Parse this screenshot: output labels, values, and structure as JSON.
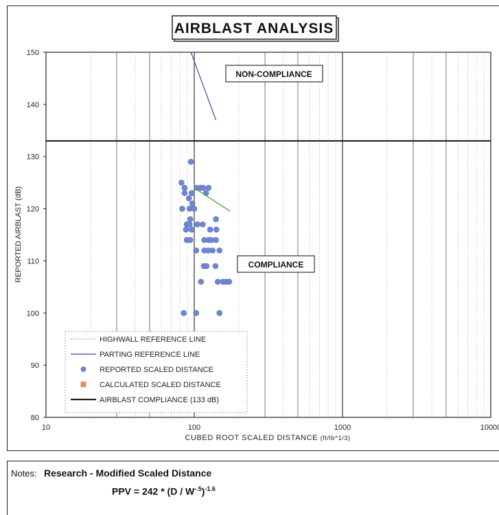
{
  "chart_data": {
    "type": "scatter",
    "title": "AIRBLAST ANALYSIS",
    "xlabel": "CUBED ROOT SCALED DISTANCE",
    "xlabel_unit": "(ft/lb^1/3)",
    "ylabel": "REPORTED AIRBLAST (dB)",
    "x_scale": "log",
    "xlim": [
      10,
      10000
    ],
    "ylim": [
      80,
      150
    ],
    "x_ticks": [
      10,
      100,
      1000,
      10000
    ],
    "x_tick_labels": [
      "10",
      "100",
      "1000",
      "10000"
    ],
    "y_ticks": [
      80,
      90,
      100,
      110,
      120,
      130,
      140,
      150
    ],
    "y_tick_labels": [
      "80",
      "90",
      "100",
      "110",
      "120",
      "130",
      "140",
      "150"
    ],
    "grid": "vertical log grid",
    "legend_position": "bottom-left",
    "annotations": [
      "NON-COMPLIANCE",
      "COMPLIANCE"
    ],
    "series": [
      {
        "name": "HIGHWALL REFERENCE LINE",
        "style": "dotted",
        "color": "#9a9a9a",
        "points": []
      },
      {
        "name": "PARTING REFERENCE LINE",
        "style": "line",
        "color": "#3b4aa8",
        "points": [
          [
            95,
            150
          ],
          [
            140,
            137
          ]
        ]
      },
      {
        "name": "REPORTED SCALED DISTANCE",
        "style": "marker-circle",
        "color": "#6f86d4",
        "points": [
          [
            95,
            129
          ],
          [
            82,
            125
          ],
          [
            86,
            124
          ],
          [
            104,
            124
          ],
          [
            110,
            124
          ],
          [
            115,
            124
          ],
          [
            125,
            124
          ],
          [
            86,
            123
          ],
          [
            96,
            123
          ],
          [
            120,
            123
          ],
          [
            92,
            122
          ],
          [
            97,
            121
          ],
          [
            83,
            120
          ],
          [
            93,
            120
          ],
          [
            100,
            120
          ],
          [
            94,
            118
          ],
          [
            140,
            118
          ],
          [
            89,
            117
          ],
          [
            93,
            117
          ],
          [
            105,
            117
          ],
          [
            114,
            117
          ],
          [
            88,
            116
          ],
          [
            96,
            116
          ],
          [
            128,
            116
          ],
          [
            141,
            116
          ],
          [
            89,
            114
          ],
          [
            94,
            114
          ],
          [
            117,
            114
          ],
          [
            125,
            114
          ],
          [
            130,
            114
          ],
          [
            140,
            114
          ],
          [
            103,
            112
          ],
          [
            117,
            112
          ],
          [
            124,
            112
          ],
          [
            133,
            112
          ],
          [
            148,
            112
          ],
          [
            116,
            109
          ],
          [
            121,
            109
          ],
          [
            139,
            109
          ],
          [
            111,
            106
          ],
          [
            144,
            106
          ],
          [
            156,
            106
          ],
          [
            164,
            106
          ],
          [
            172,
            106
          ],
          [
            85,
            100
          ],
          [
            103,
            100
          ],
          [
            148,
            100
          ]
        ]
      },
      {
        "name": "CALCULATED SCALED DISTANCE",
        "style": "marker-square",
        "color": "#e88a6a",
        "points": []
      },
      {
        "name": "AIRBLAST COMPLIANCE (133 dB)",
        "style": "thick-line",
        "color": "#222222",
        "points": [
          [
            10,
            133
          ],
          [
            10000,
            133
          ]
        ]
      },
      {
        "name": "trend",
        "style": "line",
        "color": "#5aaa4a",
        "points": [
          [
            100,
            124
          ],
          [
            175,
            119.5
          ]
        ]
      }
    ]
  },
  "notes": {
    "label": "Notes:",
    "title": "Research - Modified Scaled Distance",
    "formula_prefix": "PPV = 242 * (D / W",
    "formula_exp_inner": "-.5",
    "formula_close": ")",
    "formula_exp_outer": "-1.6"
  }
}
